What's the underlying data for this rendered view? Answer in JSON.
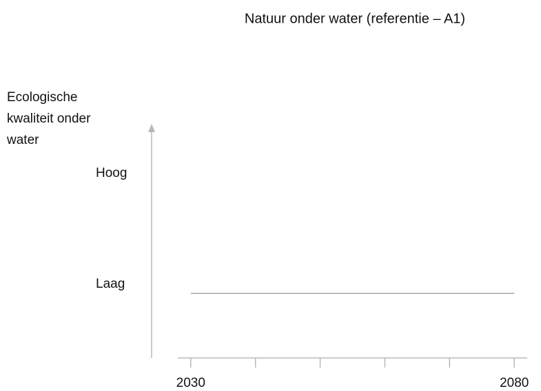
{
  "chart_data": {
    "type": "line",
    "title": "Natuur onder water (referentie – A1)",
    "y_label": "Ecologische kwaliteit onder water",
    "x": [
      2030,
      2080
    ],
    "series": [
      {
        "name": null,
        "color": "#a6a6a6",
        "values": [
          2.8,
          2.8
        ]
      }
    ],
    "xlim": [
      2028,
      2082
    ],
    "xticks": [
      2030,
      {
        "value": 2040,
        "label": null
      },
      {
        "value": 2050,
        "label": null
      },
      {
        "value": 2060,
        "label": null
      },
      {
        "value": 2070,
        "label": null
      },
      2080
    ],
    "ylim": [
      0,
      10
    ],
    "yticks": [
      {
        "value": 8,
        "label": "Hoog"
      },
      {
        "value": 3.2,
        "label": "Laag"
      }
    ],
    "grid": false
  }
}
